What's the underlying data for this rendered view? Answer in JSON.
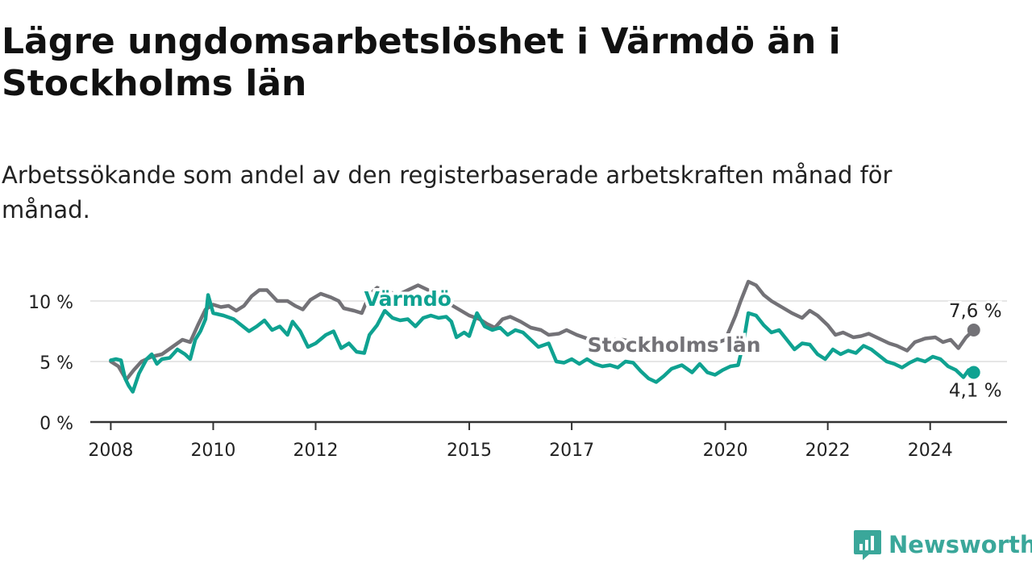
{
  "title": "Lägre ungdomsarbetslöshet i Värmdö än i Stockholms län",
  "subtitle": "Arbetssökande som andel av den registerbaserade arbetskraften månad för månad.",
  "brand": {
    "name": "Newsworthy"
  },
  "colors": {
    "varmdo": "#0fa291",
    "lan": "#737277",
    "grid": "#dddddd",
    "axis": "#333333"
  },
  "chart_data": {
    "type": "line",
    "title": "Lägre ungdomsarbetslöshet i Värmdö än i Stockholms län",
    "xlabel": "",
    "ylabel": "",
    "xlim": [
      2007.6,
      2025.5
    ],
    "ylim": [
      0,
      12
    ],
    "y_ticks": [
      {
        "value": 0,
        "label": "0 %"
      },
      {
        "value": 5,
        "label": "5 %"
      },
      {
        "value": 10,
        "label": "10 %"
      }
    ],
    "x_ticks": [
      {
        "value": 2008,
        "label": "2008"
      },
      {
        "value": 2010,
        "label": "2010"
      },
      {
        "value": 2012,
        "label": "2012"
      },
      {
        "value": 2015,
        "label": "2015"
      },
      {
        "value": 2017,
        "label": "2017"
      },
      {
        "value": 2020,
        "label": "2020"
      },
      {
        "value": 2022,
        "label": "2022"
      },
      {
        "value": 2024,
        "label": "2024"
      }
    ],
    "series": [
      {
        "name": "Stockholms län",
        "color": "#737277",
        "points": [
          [
            2008.0,
            5.0
          ],
          [
            2008.15,
            4.6
          ],
          [
            2008.3,
            3.5
          ],
          [
            2008.45,
            4.3
          ],
          [
            2008.6,
            5.0
          ],
          [
            2008.8,
            5.4
          ],
          [
            2009.0,
            5.6
          ],
          [
            2009.2,
            6.2
          ],
          [
            2009.4,
            6.8
          ],
          [
            2009.55,
            6.6
          ],
          [
            2009.7,
            8.0
          ],
          [
            2009.85,
            9.3
          ],
          [
            2010.0,
            9.7
          ],
          [
            2010.15,
            9.5
          ],
          [
            2010.3,
            9.6
          ],
          [
            2010.45,
            9.2
          ],
          [
            2010.6,
            9.6
          ],
          [
            2010.75,
            10.4
          ],
          [
            2010.9,
            10.9
          ],
          [
            2011.05,
            10.9
          ],
          [
            2011.25,
            10.0
          ],
          [
            2011.45,
            10.0
          ],
          [
            2011.6,
            9.6
          ],
          [
            2011.75,
            9.3
          ],
          [
            2011.9,
            10.1
          ],
          [
            2012.1,
            10.6
          ],
          [
            2012.3,
            10.3
          ],
          [
            2012.45,
            10.0
          ],
          [
            2012.55,
            9.4
          ],
          [
            2012.75,
            9.2
          ],
          [
            2012.9,
            9.0
          ],
          [
            2013.05,
            10.5
          ],
          [
            2013.2,
            11.1
          ],
          [
            2013.4,
            10.8
          ],
          [
            2013.6,
            10.5
          ],
          [
            2013.8,
            10.9
          ],
          [
            2014.0,
            11.3
          ],
          [
            2014.2,
            10.9
          ],
          [
            2014.4,
            10.4
          ],
          [
            2014.6,
            9.8
          ],
          [
            2014.8,
            9.3
          ],
          [
            2015.0,
            8.8
          ],
          [
            2015.2,
            8.5
          ],
          [
            2015.35,
            8.1
          ],
          [
            2015.5,
            7.8
          ],
          [
            2015.65,
            8.5
          ],
          [
            2015.8,
            8.7
          ],
          [
            2016.0,
            8.3
          ],
          [
            2016.2,
            7.8
          ],
          [
            2016.4,
            7.6
          ],
          [
            2016.55,
            7.2
          ],
          [
            2016.75,
            7.3
          ],
          [
            2016.9,
            7.6
          ],
          [
            2017.1,
            7.2
          ],
          [
            2017.3,
            6.9
          ],
          [
            2017.5,
            6.5
          ],
          [
            2017.7,
            6.8
          ],
          [
            2018.0,
            6.8
          ],
          [
            2018.3,
            6.5
          ],
          [
            2018.6,
            6.2
          ],
          [
            2018.9,
            6.4
          ],
          [
            2019.2,
            6.3
          ],
          [
            2019.5,
            6.3
          ],
          [
            2019.8,
            6.5
          ],
          [
            2020.0,
            6.8
          ],
          [
            2020.1,
            7.8
          ],
          [
            2020.2,
            8.8
          ],
          [
            2020.3,
            10.0
          ],
          [
            2020.45,
            11.6
          ],
          [
            2020.6,
            11.3
          ],
          [
            2020.75,
            10.5
          ],
          [
            2020.9,
            10.0
          ],
          [
            2021.1,
            9.5
          ],
          [
            2021.3,
            9.0
          ],
          [
            2021.5,
            8.6
          ],
          [
            2021.65,
            9.2
          ],
          [
            2021.8,
            8.8
          ],
          [
            2022.0,
            8.0
          ],
          [
            2022.15,
            7.2
          ],
          [
            2022.3,
            7.4
          ],
          [
            2022.5,
            7.0
          ],
          [
            2022.65,
            7.1
          ],
          [
            2022.8,
            7.3
          ],
          [
            2023.0,
            6.9
          ],
          [
            2023.2,
            6.5
          ],
          [
            2023.35,
            6.3
          ],
          [
            2023.55,
            5.9
          ],
          [
            2023.7,
            6.6
          ],
          [
            2023.9,
            6.9
          ],
          [
            2024.1,
            7.0
          ],
          [
            2024.25,
            6.6
          ],
          [
            2024.4,
            6.8
          ],
          [
            2024.55,
            6.1
          ],
          [
            2024.7,
            7.0
          ],
          [
            2024.85,
            7.6
          ]
        ],
        "end_label": "7,6 %"
      },
      {
        "name": "Värmdö",
        "color": "#0fa291",
        "points": [
          [
            2008.0,
            5.1
          ],
          [
            2008.1,
            5.2
          ],
          [
            2008.2,
            5.1
          ],
          [
            2008.28,
            3.6
          ],
          [
            2008.35,
            3.0
          ],
          [
            2008.43,
            2.5
          ],
          [
            2008.55,
            4.0
          ],
          [
            2008.7,
            5.2
          ],
          [
            2008.8,
            5.6
          ],
          [
            2008.9,
            4.8
          ],
          [
            2009.0,
            5.2
          ],
          [
            2009.15,
            5.3
          ],
          [
            2009.3,
            6.0
          ],
          [
            2009.45,
            5.6
          ],
          [
            2009.55,
            5.2
          ],
          [
            2009.65,
            6.8
          ],
          [
            2009.75,
            7.5
          ],
          [
            2009.85,
            8.5
          ],
          [
            2009.9,
            10.5
          ],
          [
            2010.0,
            9.0
          ],
          [
            2010.2,
            8.8
          ],
          [
            2010.4,
            8.5
          ],
          [
            2010.55,
            8.0
          ],
          [
            2010.7,
            7.5
          ],
          [
            2010.85,
            7.9
          ],
          [
            2011.0,
            8.4
          ],
          [
            2011.15,
            7.6
          ],
          [
            2011.3,
            7.9
          ],
          [
            2011.45,
            7.2
          ],
          [
            2011.55,
            8.3
          ],
          [
            2011.7,
            7.5
          ],
          [
            2011.85,
            6.2
          ],
          [
            2012.0,
            6.5
          ],
          [
            2012.2,
            7.2
          ],
          [
            2012.35,
            7.5
          ],
          [
            2012.5,
            6.1
          ],
          [
            2012.65,
            6.5
          ],
          [
            2012.8,
            5.8
          ],
          [
            2012.95,
            5.7
          ],
          [
            2013.05,
            7.2
          ],
          [
            2013.2,
            8.0
          ],
          [
            2013.35,
            9.2
          ],
          [
            2013.5,
            8.6
          ],
          [
            2013.65,
            8.4
          ],
          [
            2013.8,
            8.5
          ],
          [
            2013.95,
            7.9
          ],
          [
            2014.1,
            8.6
          ],
          [
            2014.25,
            8.8
          ],
          [
            2014.4,
            8.6
          ],
          [
            2014.55,
            8.7
          ],
          [
            2014.65,
            8.3
          ],
          [
            2014.75,
            7.0
          ],
          [
            2014.9,
            7.4
          ],
          [
            2015.0,
            7.1
          ],
          [
            2015.15,
            9.0
          ],
          [
            2015.3,
            7.9
          ],
          [
            2015.45,
            7.6
          ],
          [
            2015.6,
            7.8
          ],
          [
            2015.75,
            7.2
          ],
          [
            2015.9,
            7.6
          ],
          [
            2016.05,
            7.4
          ],
          [
            2016.2,
            6.8
          ],
          [
            2016.35,
            6.2
          ],
          [
            2016.55,
            6.5
          ],
          [
            2016.7,
            5.0
          ],
          [
            2016.85,
            4.9
          ],
          [
            2017.0,
            5.2
          ],
          [
            2017.15,
            4.8
          ],
          [
            2017.3,
            5.2
          ],
          [
            2017.45,
            4.8
          ],
          [
            2017.6,
            4.6
          ],
          [
            2017.75,
            4.7
          ],
          [
            2017.9,
            4.5
          ],
          [
            2018.05,
            5.0
          ],
          [
            2018.2,
            4.9
          ],
          [
            2018.35,
            4.2
          ],
          [
            2018.5,
            3.6
          ],
          [
            2018.65,
            3.3
          ],
          [
            2018.8,
            3.8
          ],
          [
            2018.95,
            4.4
          ],
          [
            2019.15,
            4.7
          ],
          [
            2019.35,
            4.1
          ],
          [
            2019.5,
            4.8
          ],
          [
            2019.65,
            4.1
          ],
          [
            2019.8,
            3.9
          ],
          [
            2019.95,
            4.3
          ],
          [
            2020.1,
            4.6
          ],
          [
            2020.25,
            4.7
          ],
          [
            2020.35,
            6.5
          ],
          [
            2020.45,
            9.0
          ],
          [
            2020.6,
            8.8
          ],
          [
            2020.75,
            8.0
          ],
          [
            2020.9,
            7.4
          ],
          [
            2021.05,
            7.6
          ],
          [
            2021.2,
            6.8
          ],
          [
            2021.35,
            6.0
          ],
          [
            2021.5,
            6.5
          ],
          [
            2021.65,
            6.4
          ],
          [
            2021.8,
            5.6
          ],
          [
            2021.95,
            5.2
          ],
          [
            2022.1,
            6.0
          ],
          [
            2022.25,
            5.6
          ],
          [
            2022.4,
            5.9
          ],
          [
            2022.55,
            5.7
          ],
          [
            2022.7,
            6.3
          ],
          [
            2022.85,
            6.0
          ],
          [
            2023.0,
            5.5
          ],
          [
            2023.15,
            5.0
          ],
          [
            2023.3,
            4.8
          ],
          [
            2023.45,
            4.5
          ],
          [
            2023.6,
            4.9
          ],
          [
            2023.75,
            5.2
          ],
          [
            2023.9,
            5.0
          ],
          [
            2024.05,
            5.4
          ],
          [
            2024.2,
            5.2
          ],
          [
            2024.35,
            4.6
          ],
          [
            2024.5,
            4.3
          ],
          [
            2024.65,
            3.7
          ],
          [
            2024.75,
            4.3
          ],
          [
            2024.85,
            4.1
          ]
        ],
        "end_label": "4,1 %"
      }
    ],
    "annotations": [
      {
        "text": "Värmdö",
        "series": "Värmdö",
        "x": 2013.8,
        "y": 9.6
      },
      {
        "text": "Stockholms län",
        "series": "Stockholms län",
        "x": 2019.0,
        "y": 5.8
      }
    ]
  }
}
